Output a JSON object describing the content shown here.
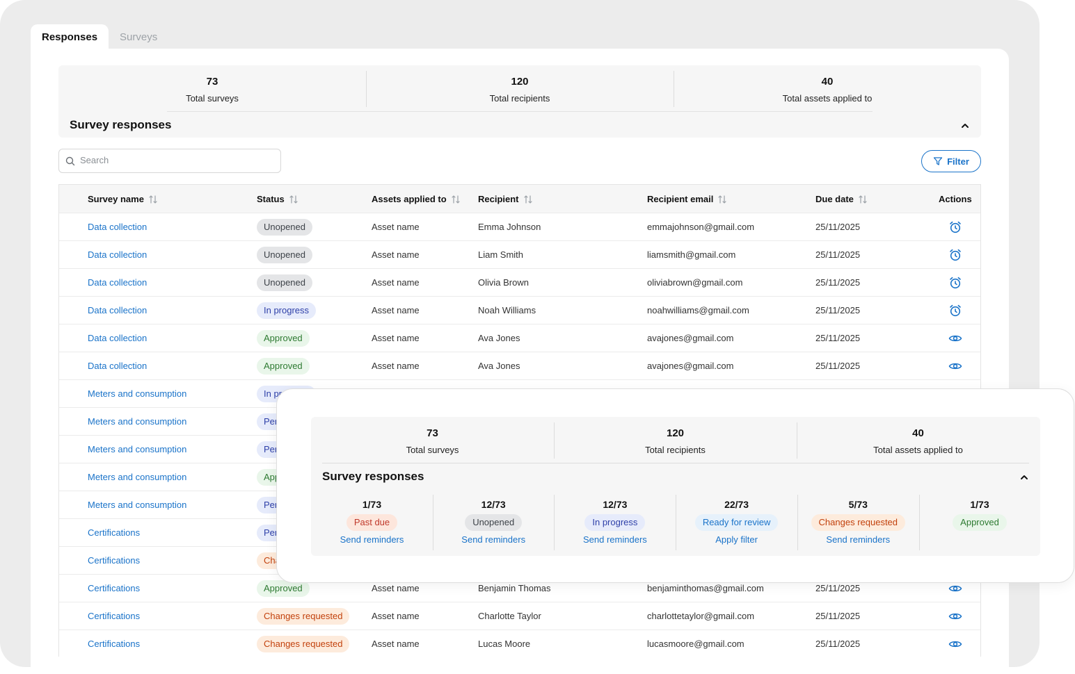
{
  "tabs": [
    {
      "label": "Responses",
      "active": true
    },
    {
      "label": "Surveys",
      "active": false
    }
  ],
  "summary": {
    "stats": [
      {
        "value": "73",
        "label": "Total surveys"
      },
      {
        "value": "120",
        "label": "Total recipients"
      },
      {
        "value": "40",
        "label": "Total assets applied to"
      }
    ],
    "title": "Survey responses",
    "collapse_icon": "chevron-up-icon"
  },
  "search": {
    "placeholder": "Search",
    "value": "",
    "icon": "search-icon"
  },
  "filter": {
    "label": "Filter",
    "icon": "filter-icon"
  },
  "table": {
    "columns": [
      "Survey name",
      "Status",
      "Assets applied to",
      "Recipient",
      "Recipient email",
      "Due date",
      "Actions"
    ],
    "rows": [
      {
        "survey": "Data collection",
        "status": "Unopened",
        "asset": "Asset name",
        "recipient": "Emma Johnson",
        "email": "emmajohnson@gmail.com",
        "due": "25/11/2025",
        "action": "alarm-clock-icon"
      },
      {
        "survey": "Data collection",
        "status": "Unopened",
        "asset": "Asset name",
        "recipient": "Liam Smith",
        "email": "liamsmith@gmail.com",
        "due": "25/11/2025",
        "action": "alarm-clock-icon"
      },
      {
        "survey": "Data collection",
        "status": "Unopened",
        "asset": "Asset name",
        "recipient": "Olivia Brown",
        "email": "oliviabrown@gmail.com",
        "due": "25/11/2025",
        "action": "alarm-clock-icon"
      },
      {
        "survey": "Data collection",
        "status": "In progress",
        "asset": "Asset name",
        "recipient": "Noah Williams",
        "email": "noahwilliams@gmail.com",
        "due": "25/11/2025",
        "action": "alarm-clock-icon"
      },
      {
        "survey": "Data collection",
        "status": "Approved",
        "asset": "Asset name",
        "recipient": "Ava Jones",
        "email": "avajones@gmail.com",
        "due": "25/11/2025",
        "action": "eye-icon"
      },
      {
        "survey": "Data collection",
        "status": "Approved",
        "asset": "Asset name",
        "recipient": "Ava Jones",
        "email": "avajones@gmail.com",
        "due": "25/11/2025",
        "action": "eye-icon"
      },
      {
        "survey": "Meters and consumption",
        "status": "In progress",
        "asset": "",
        "recipient": "",
        "email": "",
        "due": "",
        "action": ""
      },
      {
        "survey": "Meters and consumption",
        "status": "Pending",
        "asset": "",
        "recipient": "",
        "email": "",
        "due": "",
        "action": ""
      },
      {
        "survey": "Meters and consumption",
        "status": "Pending",
        "asset": "",
        "recipient": "",
        "email": "",
        "due": "",
        "action": ""
      },
      {
        "survey": "Meters and consumption",
        "status": "Approved",
        "asset": "",
        "recipient": "",
        "email": "",
        "due": "",
        "action": ""
      },
      {
        "survey": "Meters and consumption",
        "status": "Pending",
        "asset": "",
        "recipient": "",
        "email": "",
        "due": "",
        "action": ""
      },
      {
        "survey": "Certifications",
        "status": "Pending",
        "asset": "",
        "recipient": "",
        "email": "",
        "due": "",
        "action": ""
      },
      {
        "survey": "Certifications",
        "status": "Changes requested",
        "asset": "",
        "recipient": "",
        "email": "",
        "due": "",
        "action": ""
      },
      {
        "survey": "Certifications",
        "status": "Approved",
        "asset": "Asset name",
        "recipient": "Benjamin Thomas",
        "email": "benjaminthomas@gmail.com",
        "due": "25/11/2025",
        "action": "eye-icon"
      },
      {
        "survey": "Certifications",
        "status": "Changes requested",
        "asset": "Asset name",
        "recipient": "Charlotte Taylor",
        "email": "charlottetaylor@gmail.com",
        "due": "25/11/2025",
        "action": "eye-icon"
      },
      {
        "survey": "Certifications",
        "status": "Changes requested",
        "asset": "Asset name",
        "recipient": "Lucas Moore",
        "email": "lucasmoore@gmail.com",
        "due": "25/11/2025",
        "action": "eye-icon"
      }
    ]
  },
  "status_styles": {
    "Unopened": {
      "bg": "#e4e5e7",
      "fg": "#3d4248"
    },
    "In progress": {
      "bg": "#e6ebfb",
      "fg": "#2d3fa8"
    },
    "Approved": {
      "bg": "#e9f6ea",
      "fg": "#2d7a31"
    },
    "Changes requested": {
      "bg": "#fdebdc",
      "fg": "#c2410c"
    },
    "Pending": {
      "bg": "#e6ebfb",
      "fg": "#2d3fa8"
    },
    "Past due": {
      "bg": "#fde6dc",
      "fg": "#c0392b"
    },
    "Ready for review": {
      "bg": "#e6f1fb",
      "fg": "#1a73c9"
    }
  },
  "popup": {
    "stats": [
      {
        "value": "73",
        "label": "Total surveys"
      },
      {
        "value": "120",
        "label": "Total recipients"
      },
      {
        "value": "40",
        "label": "Total assets applied to"
      }
    ],
    "title": "Survey responses",
    "collapse_icon": "chevron-up-icon",
    "breakdown": [
      {
        "count": "1/73",
        "status": "Past due",
        "action": "Send reminders"
      },
      {
        "count": "12/73",
        "status": "Unopened",
        "action": "Send reminders"
      },
      {
        "count": "12/73",
        "status": "In progress",
        "action": "Send reminders"
      },
      {
        "count": "22/73",
        "status": "Ready for review",
        "action": "Apply filter"
      },
      {
        "count": "5/73",
        "status": "Changes requested",
        "action": "Send reminders"
      },
      {
        "count": "1/73",
        "status": "Approved",
        "action": ""
      }
    ]
  },
  "colors": {
    "accent": "#1a73c9",
    "background": "#ececec",
    "panel": "#f6f6f6"
  }
}
